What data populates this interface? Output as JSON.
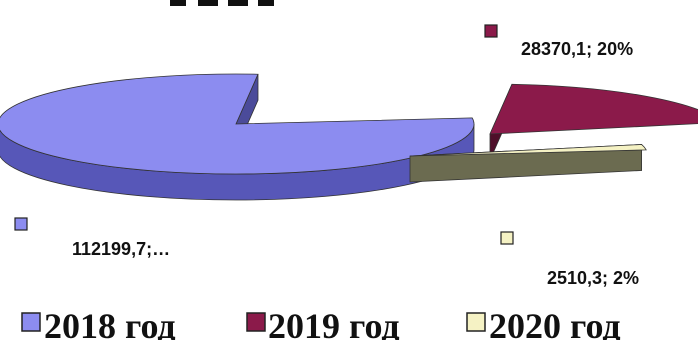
{
  "chart_data": {
    "type": "pie",
    "style": "3d-exploded",
    "categories": [
      "2018 год",
      "2019 год",
      "2020 год"
    ],
    "values": [
      112199.7,
      28370.1,
      2510.3
    ],
    "percent_labels": [
      "",
      "20%",
      "2%"
    ],
    "data_labels": [
      "112199,7;…",
      "28370,1; 20%",
      "2510,3; 2%"
    ],
    "colors": [
      "#8c8cf0",
      "#8b1a4a",
      "#f5f2c4"
    ],
    "side_colors": [
      "#5757b8",
      "#4f0f2a",
      "#6b6b50"
    ],
    "legend_position": "bottom"
  }
}
